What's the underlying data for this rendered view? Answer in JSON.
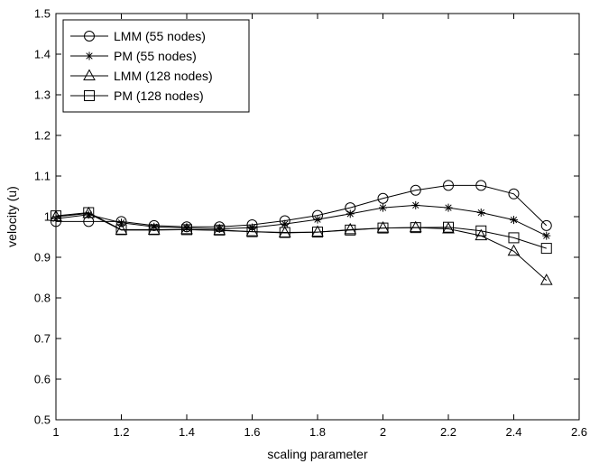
{
  "chart_data": {
    "type": "line",
    "title": "",
    "xlabel": "scaling parameter",
    "ylabel": "velocity (u)",
    "xlim": [
      1,
      2.6
    ],
    "ylim": [
      0.5,
      1.5
    ],
    "xticks": [
      1,
      1.2,
      1.4,
      1.6,
      1.8,
      2,
      2.2,
      2.4,
      2.6
    ],
    "xtick_labels": [
      "1",
      "1.2",
      "1.4",
      "1.6",
      "1.8",
      "2",
      "2.2",
      "2.4",
      "2.6"
    ],
    "yticks": [
      0.5,
      0.6,
      0.7,
      0.8,
      0.9,
      1,
      1.1,
      1.2,
      1.3,
      1.4,
      1.5
    ],
    "ytick_labels": [
      "0.5",
      "0.6",
      "0.7",
      "0.8",
      "0.9",
      "1",
      "1.1",
      "1.2",
      "1.3",
      "1.4",
      "1.5"
    ],
    "grid": false,
    "legend_position": "top-left",
    "x": [
      1,
      1.1,
      1.2,
      1.3,
      1.4,
      1.5,
      1.6,
      1.7,
      1.8,
      1.9,
      2,
      2.1,
      2.2,
      2.3,
      2.4,
      2.5
    ],
    "series": [
      {
        "name": "LMM (55 nodes)",
        "marker": "circle",
        "values": [
          0.988,
          0.988,
          0.988,
          0.978,
          0.975,
          0.975,
          0.98,
          0.99,
          1.003,
          1.022,
          1.045,
          1.065,
          1.077,
          1.077,
          1.056,
          0.978
        ]
      },
      {
        "name": "PM (55 nodes)",
        "marker": "asterisk",
        "values": [
          0.995,
          1.005,
          0.985,
          0.975,
          0.972,
          0.97,
          0.973,
          0.982,
          0.993,
          1.007,
          1.022,
          1.028,
          1.022,
          1.01,
          0.992,
          0.953
        ]
      },
      {
        "name": "LMM (128 nodes)",
        "marker": "triangle",
        "values": [
          1.0,
          1.008,
          0.967,
          0.967,
          0.968,
          0.966,
          0.963,
          0.96,
          0.962,
          0.968,
          0.972,
          0.973,
          0.97,
          0.953,
          0.915,
          0.843
        ]
      },
      {
        "name": "PM (128 nodes)",
        "marker": "square",
        "values": [
          1.002,
          1.01,
          0.968,
          0.968,
          0.968,
          0.967,
          0.963,
          0.961,
          0.962,
          0.967,
          0.972,
          0.973,
          0.974,
          0.965,
          0.948,
          0.922
        ]
      }
    ]
  }
}
